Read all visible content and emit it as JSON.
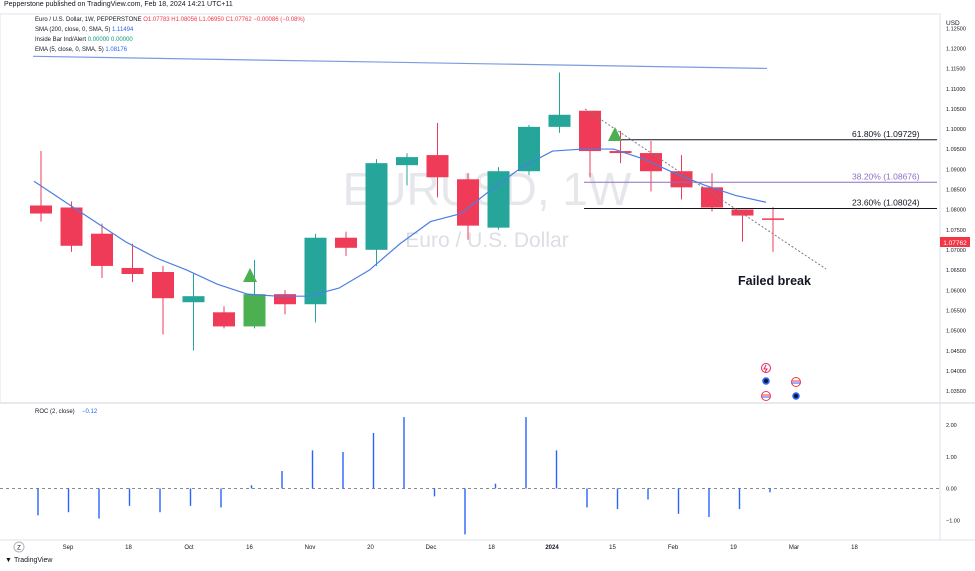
{
  "header": {
    "publisher": "Pepperstone published on TradingView.com, Feb 18, 2024 14:21 UTC+11"
  },
  "legend": {
    "symbol": "Euro / U.S. Dollar, 1W, PEPPERSTONE",
    "ohlc": "O1.07783 H1.08056 L1.06950 C1.07762 −0.00086 (−0.08%)",
    "sma": "SMA (200, close, 0, SMA, 5)",
    "sma_val": "1.11494",
    "inside": "Inside Bar Ind/Alert",
    "inside_val": "0.00000  0.00000",
    "ema": "EMA (5, close, 0, SMA, 5)",
    "ema_val": "1.08176"
  },
  "watermark": {
    "line1": "EURUSD, 1W",
    "line2": "Euro / U.S. Dollar"
  },
  "currency": "USD",
  "roc_legend": {
    "label": "ROC (2, close)",
    "value": "−0.12"
  },
  "annotations": {
    "failed_break": "Failed break"
  },
  "fib_levels": [
    {
      "label": "61.80% (1.09729)",
      "value": 1.09729,
      "color": "#131722"
    },
    {
      "label": "38.20% (1.08676)",
      "value": 1.08676,
      "color": "#8e6fc4"
    },
    {
      "label": "23.60% (1.08024)",
      "value": 1.08024,
      "color": "#131722"
    }
  ],
  "price_tag": "1.07762",
  "footer": {
    "brand": "TradingView",
    "zoom_btn": "Z"
  },
  "chart_data": {
    "type": "candlestick",
    "price_axis": {
      "ticks": [
        "1.12500",
        "1.12000",
        "1.11500",
        "1.11000",
        "1.10500",
        "1.10000",
        "1.09500",
        "1.09000",
        "1.08500",
        "1.08000",
        "1.07500",
        "1.07000",
        "1.06500",
        "1.06000",
        "1.05500",
        "1.05000",
        "1.04500",
        "1.04000",
        "1.03500"
      ],
      "ylim": [
        1.032,
        1.1285
      ]
    },
    "time_axis": [
      "Sep",
      "18",
      "Oct",
      "16",
      "Nov",
      "20",
      "Dec",
      "18",
      "2024",
      "15",
      "Feb",
      "19",
      "Mar",
      "18"
    ],
    "candles": [
      {
        "o": 1.081,
        "h": 1.0945,
        "l": 1.077,
        "c": 1.079
      },
      {
        "o": 1.0805,
        "h": 1.082,
        "l": 1.0695,
        "c": 1.071
      },
      {
        "o": 1.074,
        "h": 1.0765,
        "l": 1.063,
        "c": 1.066
      },
      {
        "o": 1.0655,
        "h": 1.0715,
        "l": 1.062,
        "c": 1.064
      },
      {
        "o": 1.0645,
        "h": 1.066,
        "l": 1.049,
        "c": 1.058
      },
      {
        "o": 1.057,
        "h": 1.064,
        "l": 1.045,
        "c": 1.0585
      },
      {
        "o": 1.0545,
        "h": 1.056,
        "l": 1.0505,
        "c": 1.051
      },
      {
        "o": 1.051,
        "h": 1.0675,
        "l": 1.0505,
        "c": 1.059
      },
      {
        "o": 1.059,
        "h": 1.06,
        "l": 1.054,
        "c": 1.0565
      },
      {
        "o": 1.0565,
        "h": 1.074,
        "l": 1.052,
        "c": 1.073
      },
      {
        "o": 1.073,
        "h": 1.0745,
        "l": 1.0685,
        "c": 1.0705
      },
      {
        "o": 1.07,
        "h": 1.0925,
        "l": 1.066,
        "c": 1.0915
      },
      {
        "o": 1.091,
        "h": 1.094,
        "l": 1.086,
        "c": 1.093
      },
      {
        "o": 1.0935,
        "h": 1.1015,
        "l": 1.083,
        "c": 1.088
      },
      {
        "o": 1.0875,
        "h": 1.089,
        "l": 1.0725,
        "c": 1.076
      },
      {
        "o": 1.0755,
        "h": 1.0905,
        "l": 1.075,
        "c": 1.0895
      },
      {
        "o": 1.0895,
        "h": 1.101,
        "l": 1.0885,
        "c": 1.1005
      },
      {
        "o": 1.1005,
        "h": 1.114,
        "l": 1.099,
        "c": 1.1035
      },
      {
        "o": 1.1045,
        "h": 1.1045,
        "l": 1.088,
        "c": 1.0945
      },
      {
        "o": 1.0945,
        "h": 1.0995,
        "l": 1.0915,
        "c": 1.094
      },
      {
        "o": 1.094,
        "h": 1.097,
        "l": 1.0845,
        "c": 1.0895
      },
      {
        "o": 1.0895,
        "h": 1.0935,
        "l": 1.0825,
        "c": 1.0855
      },
      {
        "o": 1.0855,
        "h": 1.089,
        "l": 1.0795,
        "c": 1.0805
      },
      {
        "o": 1.08,
        "h": 1.08,
        "l": 1.072,
        "c": 1.0785
      },
      {
        "o": 1.0778,
        "h": 1.0806,
        "l": 1.0695,
        "c": 1.0776
      }
    ],
    "sma200": [
      1.118,
      1.115
    ],
    "ema5": [
      1.087,
      1.082,
      1.077,
      1.072,
      1.068,
      1.065,
      1.0615,
      1.059,
      1.0585,
      1.0585,
      1.0605,
      1.065,
      1.0715,
      1.077,
      1.079,
      1.085,
      1.0905,
      1.0945,
      1.095,
      1.095,
      1.0925,
      1.089,
      1.086,
      1.0835,
      1.0818
    ],
    "roc": {
      "ticks": [
        "2.00",
        "1.00",
        "0.00",
        "−1.00"
      ],
      "ylim": [
        -1.5,
        2.6
      ],
      "values": [
        -0.85,
        -0.75,
        -0.95,
        -0.55,
        -0.75,
        -0.55,
        -0.6,
        0.1,
        0.55,
        1.2,
        1.15,
        1.75,
        2.25,
        -0.25,
        -1.45,
        0.15,
        2.25,
        1.2,
        -0.6,
        -0.65,
        -0.35,
        -0.8,
        -0.9,
        -0.65,
        -0.12
      ]
    }
  }
}
